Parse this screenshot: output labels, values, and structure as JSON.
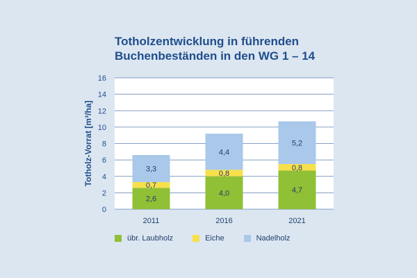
{
  "chart_data": {
    "type": "bar",
    "stacked": true,
    "title_line1": "Totholzentwicklung in führenden",
    "title_line2": "Buchenbeständen in den WG 1 – 14",
    "ylabel": "Totholz-Vorrat [m³/ha]",
    "xlabel": "",
    "ylim": [
      0,
      16
    ],
    "yticks": [
      0,
      2,
      4,
      6,
      8,
      10,
      12,
      14,
      16
    ],
    "grid": true,
    "legend_position": "bottom",
    "categories": [
      "2011",
      "2016",
      "2021"
    ],
    "series": [
      {
        "name": "übr. Laubholz",
        "values": [
          2.6,
          4.0,
          4.7
        ],
        "labels": [
          "2,6",
          "4,0",
          "4,7"
        ],
        "color": "#8fc036"
      },
      {
        "name": "Eiche",
        "values": [
          0.7,
          0.8,
          0.8
        ],
        "labels": [
          "0,7",
          "0,8",
          "0,8"
        ],
        "color": "#f7e04b"
      },
      {
        "name": "Nadelholz",
        "values": [
          3.3,
          4.4,
          5.2
        ],
        "labels": [
          "3,3",
          "4,4",
          "5,2"
        ],
        "color": "#a9c8ea"
      }
    ]
  },
  "colors": {
    "background": "#dce6f1",
    "plot_background": "#ffffff",
    "text": "#1f4e8c",
    "grid": "#5b7fb0"
  }
}
